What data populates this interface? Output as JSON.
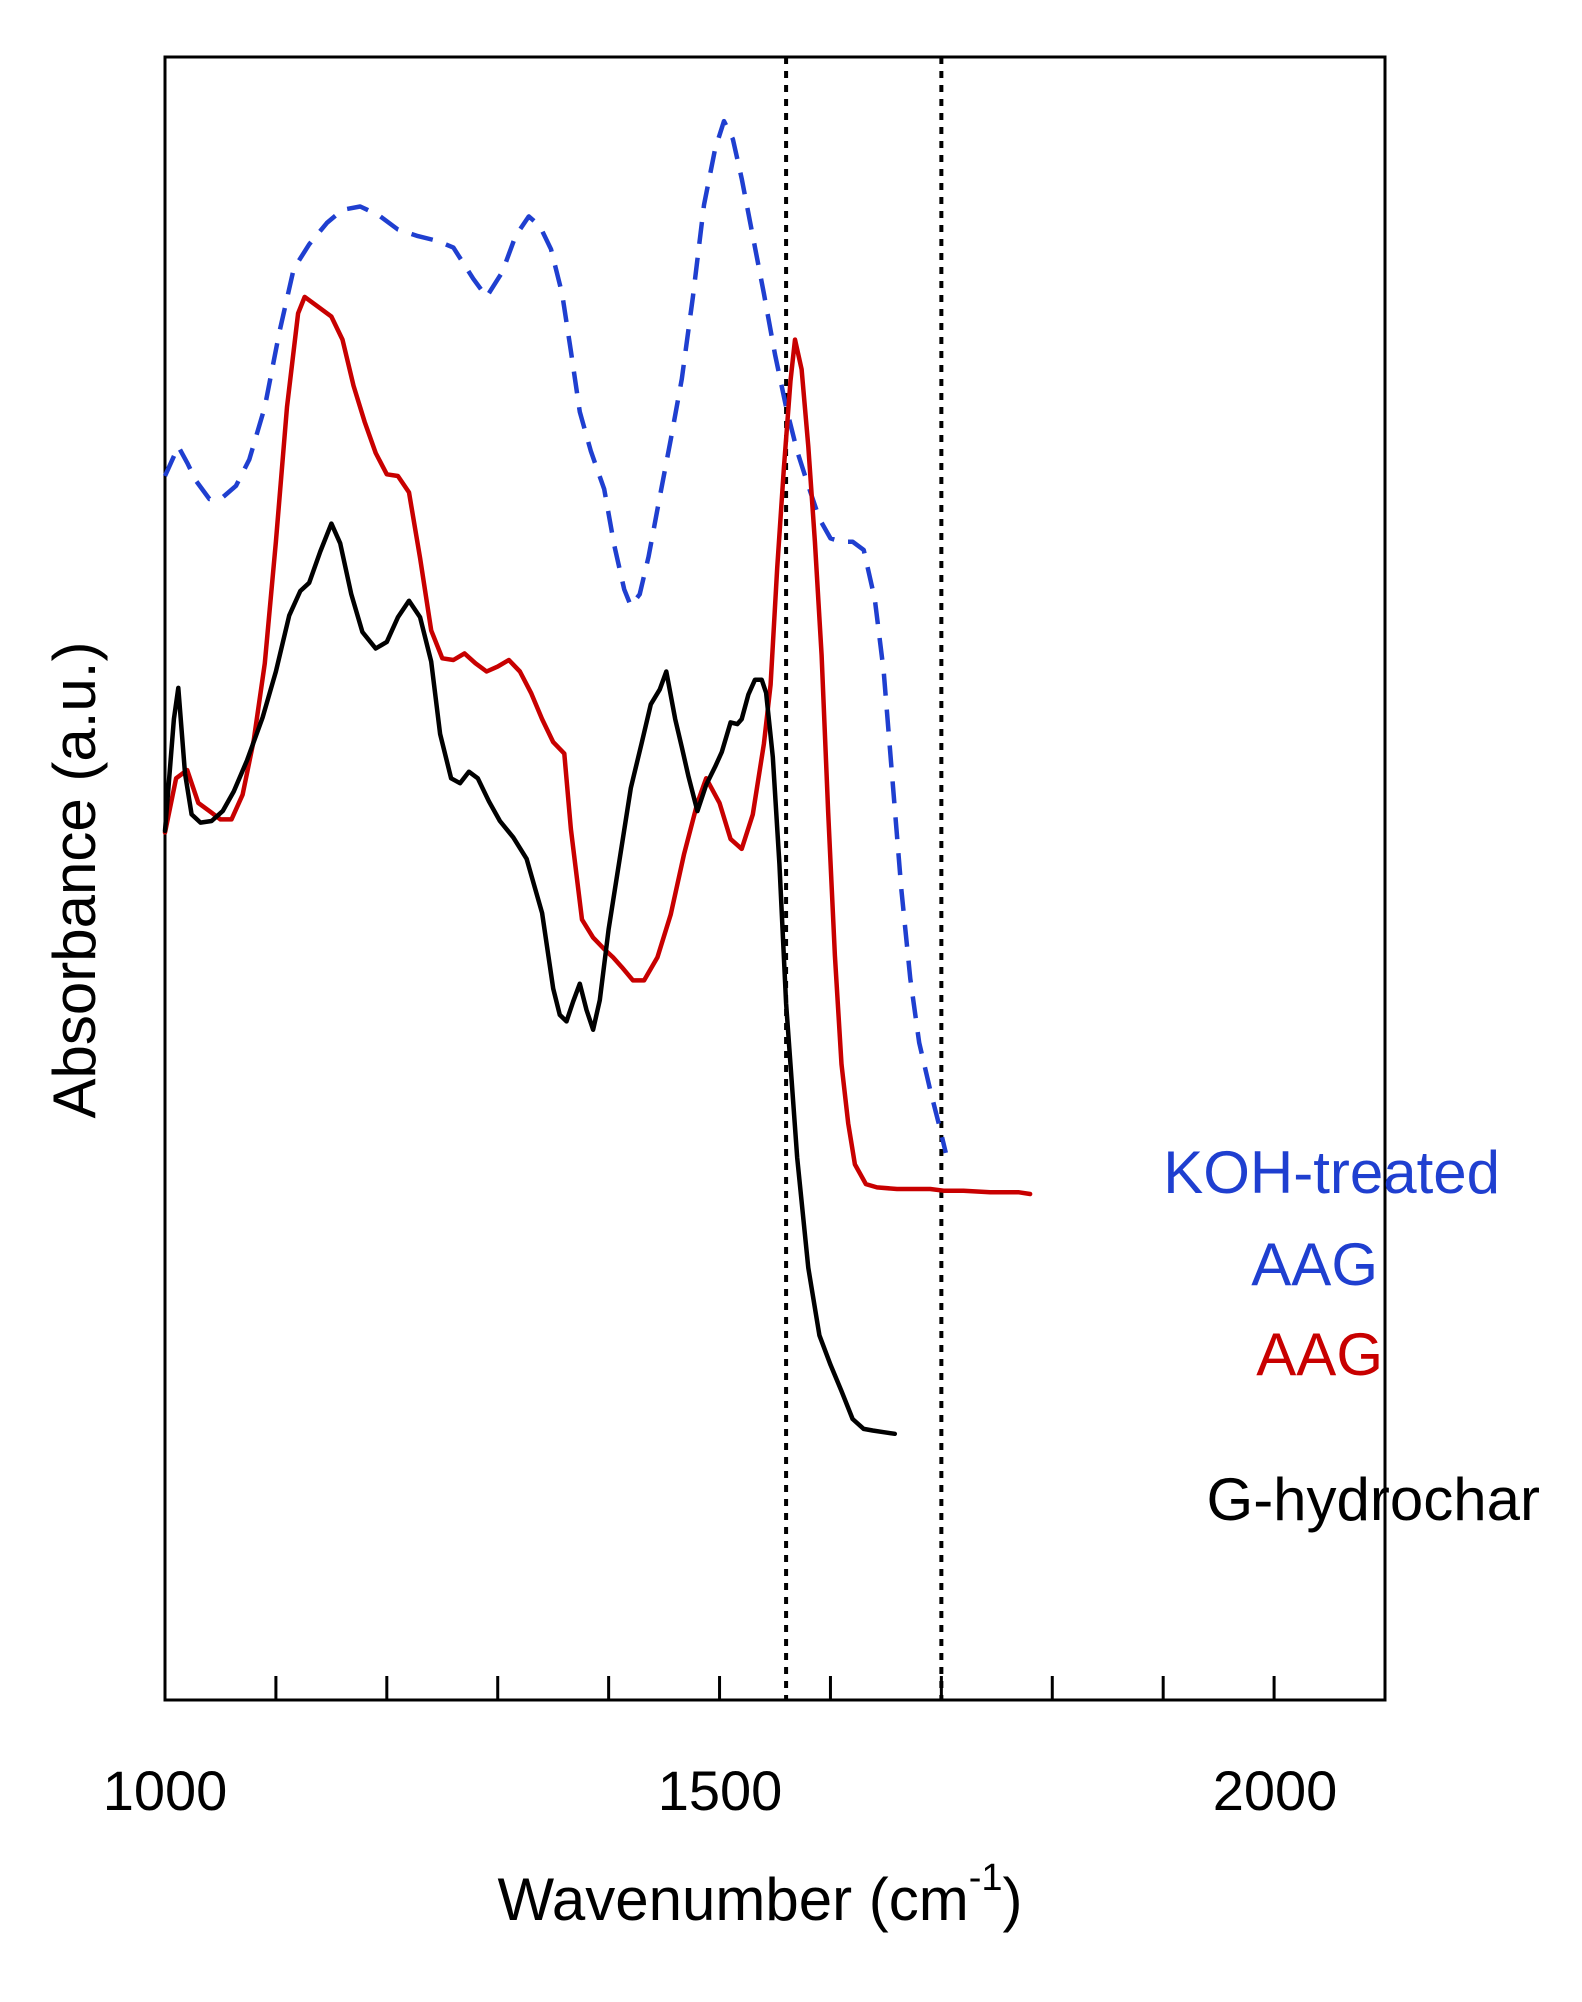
{
  "chart_data": {
    "type": "line",
    "title": "",
    "xlabel": "Wavenumber (cm",
    "xlabel_superscript": "-1",
    "xlabel_suffix": ")",
    "ylabel": "Absorbance (a.u.)",
    "xlim": [
      1000,
      2100
    ],
    "ylim": [
      0,
      100
    ],
    "x_major_ticks": [
      1000,
      1500,
      2000
    ],
    "x_minor_ticks": [
      1100,
      1200,
      1300,
      1400,
      1600,
      1700,
      1800,
      1900
    ],
    "y_ticks_shown": false,
    "grid": false,
    "reference_lines": [
      1560,
      1700
    ],
    "series": [
      {
        "name": "KOH-treated AAG",
        "label_lines": [
          "KOH-treated",
          "AAG"
        ],
        "color": "#1f3fd0",
        "dash": true,
        "points": [
          [
            1000,
            74.5
          ],
          [
            1012,
            76.3
          ],
          [
            1020,
            75.3
          ],
          [
            1028,
            74.2
          ],
          [
            1040,
            73.1
          ],
          [
            1052,
            73.2
          ],
          [
            1064,
            73.9
          ],
          [
            1076,
            75.5
          ],
          [
            1090,
            78.7
          ],
          [
            1103,
            83.2
          ],
          [
            1116,
            87.1
          ],
          [
            1130,
            88.6
          ],
          [
            1146,
            89.9
          ],
          [
            1160,
            90.7
          ],
          [
            1176,
            90.9
          ],
          [
            1192,
            90.4
          ],
          [
            1210,
            89.5
          ],
          [
            1228,
            89.1
          ],
          [
            1246,
            88.8
          ],
          [
            1260,
            88.4
          ],
          [
            1278,
            86.5
          ],
          [
            1290,
            85.4
          ],
          [
            1304,
            86.9
          ],
          [
            1316,
            89.1
          ],
          [
            1328,
            90.3
          ],
          [
            1338,
            89.7
          ],
          [
            1348,
            88.3
          ],
          [
            1358,
            85.6
          ],
          [
            1366,
            82.1
          ],
          [
            1374,
            78.4
          ],
          [
            1384,
            76.0
          ],
          [
            1396,
            73.7
          ],
          [
            1405,
            70.3
          ],
          [
            1414,
            67.6
          ],
          [
            1420,
            66.6
          ],
          [
            1428,
            67.3
          ],
          [
            1436,
            69.6
          ],
          [
            1446,
            73.2
          ],
          [
            1456,
            76.7
          ],
          [
            1466,
            80.4
          ],
          [
            1476,
            85.4
          ],
          [
            1486,
            91.0
          ],
          [
            1496,
            94.4
          ],
          [
            1504,
            96.1
          ],
          [
            1512,
            95.0
          ],
          [
            1520,
            92.6
          ],
          [
            1530,
            89.1
          ],
          [
            1540,
            85.6
          ],
          [
            1550,
            81.9
          ],
          [
            1560,
            78.7
          ],
          [
            1570,
            76.0
          ],
          [
            1580,
            73.9
          ],
          [
            1590,
            71.9
          ],
          [
            1600,
            70.7
          ],
          [
            1610,
            70.5
          ],
          [
            1620,
            70.5
          ],
          [
            1630,
            70.0
          ],
          [
            1640,
            67.0
          ],
          [
            1648,
            62.6
          ],
          [
            1656,
            55.9
          ],
          [
            1664,
            49.3
          ],
          [
            1672,
            43.9
          ],
          [
            1680,
            40.0
          ],
          [
            1690,
            37.1
          ],
          [
            1698,
            35.0
          ],
          [
            1704,
            33.3
          ]
        ]
      },
      {
        "name": "AAG",
        "label_lines": [
          "AAG"
        ],
        "color": "#c80000",
        "dash": false,
        "points": [
          [
            1000,
            52.8
          ],
          [
            1010,
            56.1
          ],
          [
            1020,
            56.6
          ],
          [
            1030,
            54.6
          ],
          [
            1040,
            54.1
          ],
          [
            1050,
            53.6
          ],
          [
            1060,
            53.6
          ],
          [
            1070,
            55.1
          ],
          [
            1080,
            58.4
          ],
          [
            1090,
            63.1
          ],
          [
            1100,
            70.5
          ],
          [
            1110,
            78.7
          ],
          [
            1120,
            84.4
          ],
          [
            1126,
            85.4
          ],
          [
            1136,
            84.9
          ],
          [
            1150,
            84.2
          ],
          [
            1160,
            82.8
          ],
          [
            1170,
            80.0
          ],
          [
            1180,
            77.8
          ],
          [
            1190,
            75.9
          ],
          [
            1200,
            74.6
          ],
          [
            1210,
            74.5
          ],
          [
            1220,
            73.5
          ],
          [
            1230,
            69.5
          ],
          [
            1240,
            65.1
          ],
          [
            1250,
            63.4
          ],
          [
            1260,
            63.3
          ],
          [
            1270,
            63.7
          ],
          [
            1280,
            63.1
          ],
          [
            1290,
            62.6
          ],
          [
            1300,
            62.9
          ],
          [
            1310,
            63.3
          ],
          [
            1320,
            62.6
          ],
          [
            1330,
            61.3
          ],
          [
            1340,
            59.7
          ],
          [
            1350,
            58.3
          ],
          [
            1360,
            57.6
          ],
          [
            1366,
            53.0
          ],
          [
            1376,
            47.5
          ],
          [
            1386,
            46.4
          ],
          [
            1396,
            45.7
          ],
          [
            1404,
            45.2
          ],
          [
            1412,
            44.6
          ],
          [
            1422,
            43.8
          ],
          [
            1432,
            43.8
          ],
          [
            1444,
            45.2
          ],
          [
            1456,
            47.8
          ],
          [
            1468,
            51.5
          ],
          [
            1480,
            54.6
          ],
          [
            1488,
            56.1
          ],
          [
            1500,
            54.6
          ],
          [
            1510,
            52.4
          ],
          [
            1520,
            51.8
          ],
          [
            1530,
            53.9
          ],
          [
            1540,
            58.2
          ],
          [
            1546,
            61.8
          ],
          [
            1552,
            68.9
          ],
          [
            1558,
            75.0
          ],
          [
            1564,
            80.3
          ],
          [
            1568,
            82.8
          ],
          [
            1574,
            81.0
          ],
          [
            1580,
            76.3
          ],
          [
            1586,
            70.5
          ],
          [
            1592,
            63.6
          ],
          [
            1598,
            54.0
          ],
          [
            1604,
            45.3
          ],
          [
            1610,
            38.7
          ],
          [
            1616,
            35.1
          ],
          [
            1622,
            32.6
          ],
          [
            1632,
            31.4
          ],
          [
            1642,
            31.2
          ],
          [
            1660,
            31.1
          ],
          [
            1690,
            31.1
          ],
          [
            1702,
            31.0
          ],
          [
            1720,
            31.0
          ],
          [
            1744,
            30.9
          ],
          [
            1770,
            30.9
          ],
          [
            1780,
            30.8
          ]
        ]
      },
      {
        "name": "G-hydrochar",
        "label_lines": [
          "G-hydrochar"
        ],
        "color": "#000000",
        "dash": false,
        "points": [
          [
            1000,
            52.9
          ],
          [
            1008,
            59.7
          ],
          [
            1012,
            61.6
          ],
          [
            1018,
            56.4
          ],
          [
            1024,
            53.9
          ],
          [
            1032,
            53.4
          ],
          [
            1042,
            53.5
          ],
          [
            1052,
            54.1
          ],
          [
            1062,
            55.3
          ],
          [
            1074,
            57.2
          ],
          [
            1088,
            59.8
          ],
          [
            1100,
            62.6
          ],
          [
            1112,
            66.0
          ],
          [
            1122,
            67.5
          ],
          [
            1130,
            68.0
          ],
          [
            1140,
            69.9
          ],
          [
            1150,
            71.6
          ],
          [
            1158,
            70.4
          ],
          [
            1168,
            67.3
          ],
          [
            1178,
            65.0
          ],
          [
            1190,
            64.0
          ],
          [
            1200,
            64.4
          ],
          [
            1210,
            65.9
          ],
          [
            1220,
            66.9
          ],
          [
            1230,
            65.9
          ],
          [
            1240,
            63.2
          ],
          [
            1248,
            58.8
          ],
          [
            1258,
            56.1
          ],
          [
            1266,
            55.8
          ],
          [
            1274,
            56.5
          ],
          [
            1282,
            56.1
          ],
          [
            1292,
            54.7
          ],
          [
            1302,
            53.5
          ],
          [
            1314,
            52.5
          ],
          [
            1326,
            51.2
          ],
          [
            1340,
            47.9
          ],
          [
            1350,
            43.3
          ],
          [
            1356,
            41.7
          ],
          [
            1362,
            41.3
          ],
          [
            1368,
            42.5
          ],
          [
            1374,
            43.6
          ],
          [
            1380,
            42.0
          ],
          [
            1386,
            40.8
          ],
          [
            1392,
            42.6
          ],
          [
            1400,
            46.9
          ],
          [
            1410,
            51.2
          ],
          [
            1420,
            55.5
          ],
          [
            1430,
            58.3
          ],
          [
            1438,
            60.6
          ],
          [
            1446,
            61.5
          ],
          [
            1452,
            62.6
          ],
          [
            1460,
            59.7
          ],
          [
            1466,
            58.0
          ],
          [
            1472,
            56.2
          ],
          [
            1480,
            54.1
          ],
          [
            1488,
            55.7
          ],
          [
            1496,
            56.8
          ],
          [
            1502,
            57.7
          ],
          [
            1510,
            59.5
          ],
          [
            1516,
            59.4
          ],
          [
            1520,
            59.7
          ],
          [
            1526,
            61.2
          ],
          [
            1532,
            62.1
          ],
          [
            1538,
            62.1
          ],
          [
            1542,
            61.3
          ],
          [
            1548,
            57.4
          ],
          [
            1554,
            50.9
          ],
          [
            1560,
            42.4
          ],
          [
            1570,
            33.0
          ],
          [
            1580,
            26.3
          ],
          [
            1590,
            22.2
          ],
          [
            1600,
            20.4
          ],
          [
            1610,
            18.8
          ],
          [
            1620,
            17.1
          ],
          [
            1630,
            16.5
          ],
          [
            1638,
            16.4
          ],
          [
            1648,
            16.3
          ],
          [
            1658,
            16.2
          ]
        ]
      }
    ]
  }
}
